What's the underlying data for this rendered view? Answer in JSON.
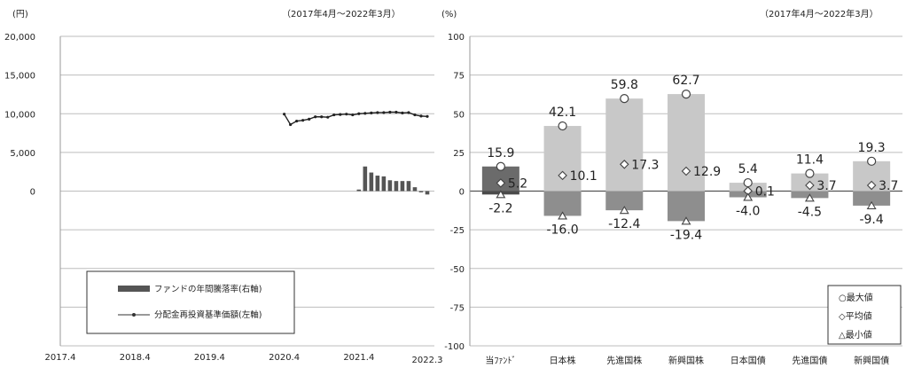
{
  "left_chart": {
    "unit": "(円)",
    "period": "（2017年4月～2022年3月）",
    "y_ticks": [
      "20,000",
      "15,000",
      "10,000",
      "5,000",
      "0"
    ],
    "x_ticks": [
      "2017.4",
      "2018.4",
      "2019.4",
      "2020.4",
      "2021.4",
      "2022.3"
    ],
    "legend": {
      "bar_label": "ファンドの年間騰落率(右軸)",
      "line_label": "分配金再投資基準価額(左軸)"
    }
  },
  "right_chart": {
    "unit": "(%)",
    "period": "（2017年4月～2022年3月）",
    "y_ticks": [
      "100",
      "75",
      "50",
      "25",
      "0",
      "-25",
      "-50",
      "-75",
      "-100"
    ],
    "legend": {
      "max": "○最大値",
      "avg": "◇平均値",
      "min": "△最小値"
    }
  },
  "chart_data": [
    {
      "type": "line",
      "left_ylim": [
        0,
        20000
      ],
      "right_ylim_pct": [
        -100,
        100
      ],
      "x_range": [
        "2017-04",
        "2022-03"
      ],
      "series": [
        {
          "name": "分配金再投資基準価額(左軸)",
          "type": "line",
          "axis": "left",
          "x": [
            "2020-04",
            "2020-05",
            "2020-06",
            "2020-07",
            "2020-08",
            "2020-09",
            "2020-10",
            "2020-11",
            "2020-12",
            "2021-01",
            "2021-02",
            "2021-03",
            "2021-04",
            "2021-05",
            "2021-06",
            "2021-07",
            "2021-08",
            "2021-09",
            "2021-10",
            "2021-11",
            "2021-12",
            "2022-01",
            "2022-02",
            "2022-03"
          ],
          "values": [
            9950,
            8600,
            9050,
            9150,
            9300,
            9600,
            9600,
            9550,
            9850,
            9900,
            9950,
            9850,
            10000,
            10050,
            10100,
            10150,
            10150,
            10200,
            10200,
            10100,
            10150,
            9850,
            9700,
            9650
          ]
        },
        {
          "name": "ファンドの年間騰落率(右軸)",
          "type": "bar",
          "axis": "right",
          "x": [
            "2021-04",
            "2021-05",
            "2021-06",
            "2021-07",
            "2021-08",
            "2021-09",
            "2021-10",
            "2021-11",
            "2021-12",
            "2022-01",
            "2022-02",
            "2022-03"
          ],
          "values_pct": [
            1.0,
            15.9,
            12.0,
            10.0,
            9.5,
            7.0,
            6.5,
            6.5,
            6.5,
            2.5,
            -0.8,
            -2.2
          ]
        }
      ]
    },
    {
      "type": "bar",
      "categories": [
        "当ﾌｧﾝﾄﾞ",
        "日本株",
        "先進国株",
        "新興国株",
        "日本国債",
        "先進国債",
        "新興国債"
      ],
      "ylim": [
        -100,
        100
      ],
      "max": [
        15.9,
        42.1,
        59.8,
        62.7,
        5.4,
        11.4,
        19.3
      ],
      "avg": [
        5.2,
        10.1,
        17.3,
        12.9,
        0.1,
        3.7,
        3.7
      ],
      "min": [
        -2.2,
        -16.0,
        -12.4,
        -19.4,
        -4.0,
        -4.5,
        -9.4
      ],
      "max_labels": [
        "15.9",
        "42.1",
        "59.8",
        "62.7",
        "5.4",
        "11.4",
        "19.3"
      ],
      "avg_labels": [
        "5.2",
        "10.1",
        "17.3",
        "12.9",
        "0.1",
        "3.7",
        "3.7"
      ],
      "min_labels": [
        "-2.2",
        "-16.0",
        "-12.4",
        "-19.4",
        "-4.0",
        "-4.5",
        "-9.4"
      ],
      "colors": {
        "fund_pos": "#6b6b6b",
        "fund_neg": "#4a4a4a",
        "pos": "#c8c8c8",
        "neg": "#8e8e8e"
      }
    }
  ]
}
